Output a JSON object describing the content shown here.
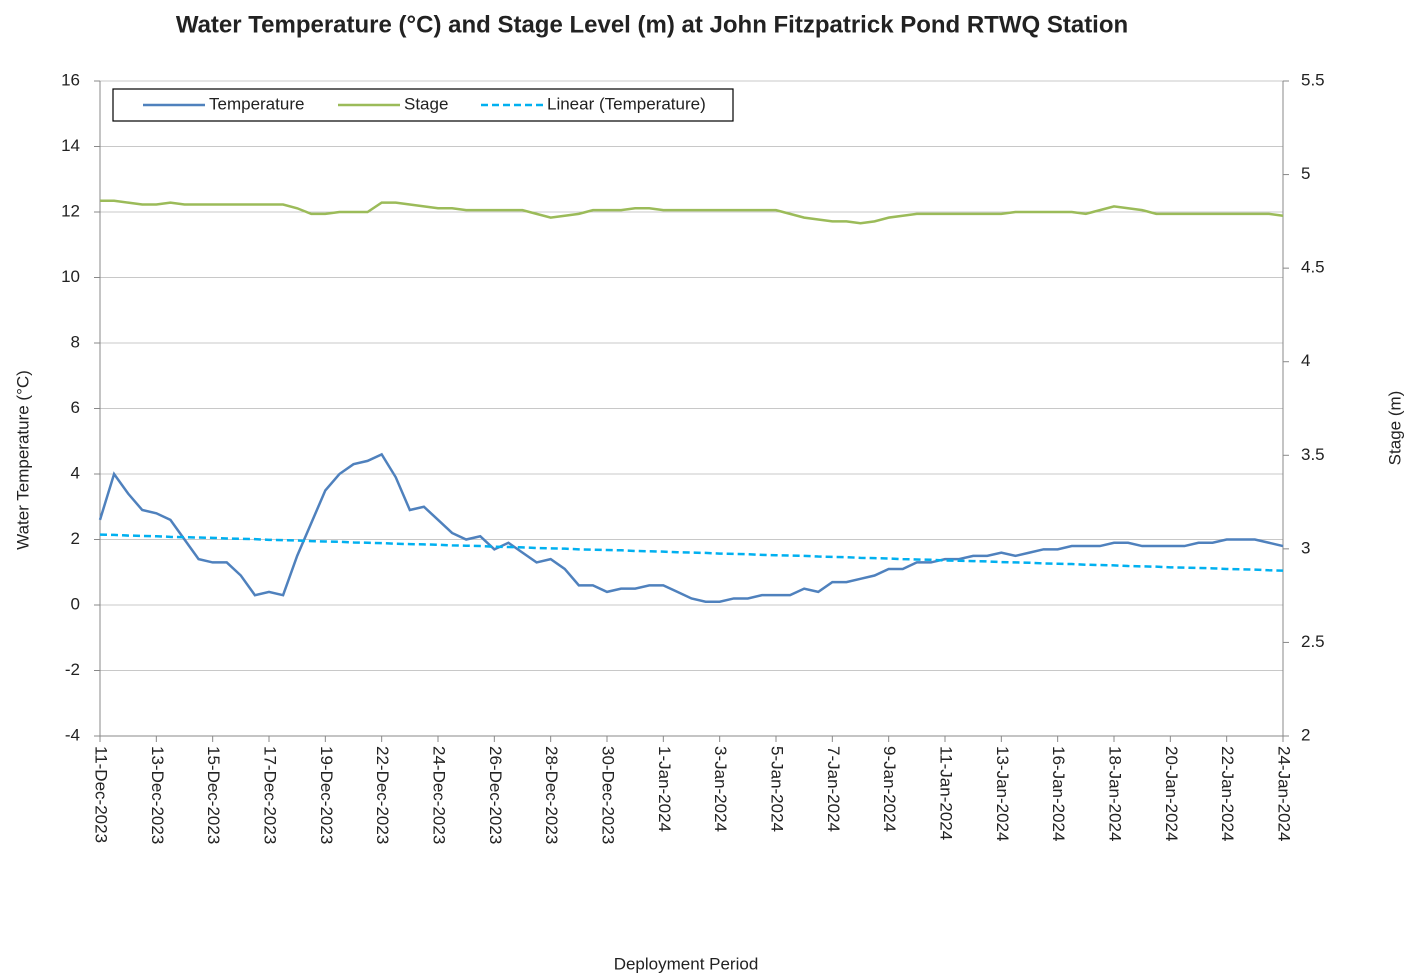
{
  "chart_data": {
    "type": "line",
    "title": "Water Temperature (°C) and Stage Level (m) at John Fitzpatrick Pond RTWQ Station",
    "x_label": "Deployment Period",
    "y_label": "Water Temperature (°C)",
    "y2_label": "Stage (m)",
    "legend": "upper left",
    "grid": true,
    "ylim": [
      -4,
      16
    ],
    "yticks": [
      -4,
      -2,
      0,
      2,
      4,
      6,
      8,
      10,
      12,
      14,
      16
    ],
    "y2lim": [
      2,
      5.5
    ],
    "y2ticks": [
      2,
      2.5,
      3,
      3.5,
      4,
      4.5,
      5,
      5.5
    ],
    "categories": [
      "11-Dec-2023",
      null,
      null,
      null,
      "13-Dec-2023",
      null,
      null,
      null,
      "15-Dec-2023",
      null,
      null,
      null,
      "17-Dec-2023",
      null,
      null,
      null,
      "19-Dec-2023",
      null,
      null,
      null,
      "22-Dec-2023",
      null,
      null,
      null,
      "24-Dec-2023",
      null,
      null,
      null,
      "26-Dec-2023",
      null,
      null,
      null,
      "28-Dec-2023",
      null,
      null,
      null,
      "30-Dec-2023",
      null,
      null,
      null,
      "1-Jan-2024",
      null,
      null,
      null,
      "3-Jan-2024",
      null,
      null,
      null,
      "5-Jan-2024",
      null,
      null,
      null,
      "7-Jan-2024",
      null,
      null,
      null,
      "9-Jan-2024",
      null,
      null,
      null,
      "11-Jan-2024",
      null,
      null,
      null,
      "13-Jan-2024",
      null,
      null,
      null,
      "16-Jan-2024",
      null,
      null,
      null,
      "18-Jan-2024",
      null,
      null,
      null,
      "20-Jan-2024",
      null,
      null,
      null,
      "22-Jan-2024",
      null,
      null,
      null,
      "24-Jan-2024"
    ],
    "series": [
      {
        "name": "Temperature",
        "color": "#4f81bd",
        "dash": false,
        "values": [
          2.6,
          4.0,
          3.4,
          2.9,
          2.8,
          2.6,
          2.0,
          1.4,
          1.3,
          1.3,
          0.9,
          0.3,
          0.4,
          0.3,
          1.5,
          2.5,
          3.5,
          4.0,
          4.3,
          4.4,
          4.6,
          3.9,
          2.9,
          3.0,
          2.6,
          2.2,
          2.0,
          2.1,
          1.7,
          1.9,
          1.6,
          1.3,
          1.4,
          1.1,
          0.6,
          0.6,
          0.4,
          0.5,
          0.5,
          0.6,
          0.6,
          0.4,
          0.2,
          0.1,
          0.1,
          0.2,
          0.2,
          0.3,
          0.3,
          0.3,
          0.5,
          0.4,
          0.7,
          0.7,
          0.8,
          0.9,
          1.1,
          1.1,
          1.3,
          1.3,
          1.4,
          1.4,
          1.5,
          1.5,
          1.6,
          1.5,
          1.6,
          1.7,
          1.7,
          1.8,
          1.8,
          1.8,
          1.9,
          1.9,
          1.8,
          1.8,
          1.8,
          1.8,
          1.9,
          1.9,
          2.0,
          2.0,
          2.0,
          1.9,
          1.8
        ]
      },
      {
        "name": "Stage",
        "color": "#9bbb59",
        "dash": false,
        "axis": "y2",
        "values": [
          4.86,
          4.86,
          4.85,
          4.84,
          4.84,
          4.85,
          4.84,
          4.84,
          4.84,
          4.84,
          4.84,
          4.84,
          4.84,
          4.84,
          4.82,
          4.79,
          4.79,
          4.8,
          4.8,
          4.8,
          4.85,
          4.85,
          4.84,
          4.83,
          4.82,
          4.82,
          4.81,
          4.81,
          4.81,
          4.81,
          4.81,
          4.79,
          4.77,
          4.78,
          4.79,
          4.81,
          4.81,
          4.81,
          4.82,
          4.82,
          4.81,
          4.81,
          4.81,
          4.81,
          4.81,
          4.81,
          4.81,
          4.81,
          4.81,
          4.79,
          4.77,
          4.76,
          4.75,
          4.75,
          4.74,
          4.75,
          4.77,
          4.78,
          4.79,
          4.79,
          4.79,
          4.79,
          4.79,
          4.79,
          4.79,
          4.8,
          4.8,
          4.8,
          4.8,
          4.8,
          4.79,
          4.81,
          4.83,
          4.82,
          4.81,
          4.79,
          4.79,
          4.79,
          4.79,
          4.79,
          4.79,
          4.79,
          4.79,
          4.79,
          4.78
        ]
      },
      {
        "name": "Linear (Temperature)",
        "color": "#00b0f0",
        "dash": true,
        "values": [
          2.15,
          2.14,
          2.12,
          2.11,
          2.1,
          2.08,
          2.07,
          2.06,
          2.05,
          2.03,
          2.02,
          2.01,
          1.99,
          1.98,
          1.97,
          1.95,
          1.94,
          1.93,
          1.91,
          1.9,
          1.89,
          1.87,
          1.86,
          1.85,
          1.84,
          1.82,
          1.81,
          1.8,
          1.78,
          1.77,
          1.76,
          1.74,
          1.73,
          1.72,
          1.7,
          1.69,
          1.68,
          1.67,
          1.65,
          1.64,
          1.63,
          1.61,
          1.6,
          1.59,
          1.57,
          1.56,
          1.55,
          1.53,
          1.52,
          1.51,
          1.5,
          1.48,
          1.47,
          1.46,
          1.44,
          1.43,
          1.42,
          1.4,
          1.39,
          1.38,
          1.36,
          1.35,
          1.34,
          1.33,
          1.31,
          1.3,
          1.29,
          1.27,
          1.26,
          1.25,
          1.23,
          1.22,
          1.21,
          1.19,
          1.18,
          1.17,
          1.15,
          1.14,
          1.13,
          1.12,
          1.1,
          1.09,
          1.08,
          1.06,
          1.05
        ]
      }
    ]
  }
}
